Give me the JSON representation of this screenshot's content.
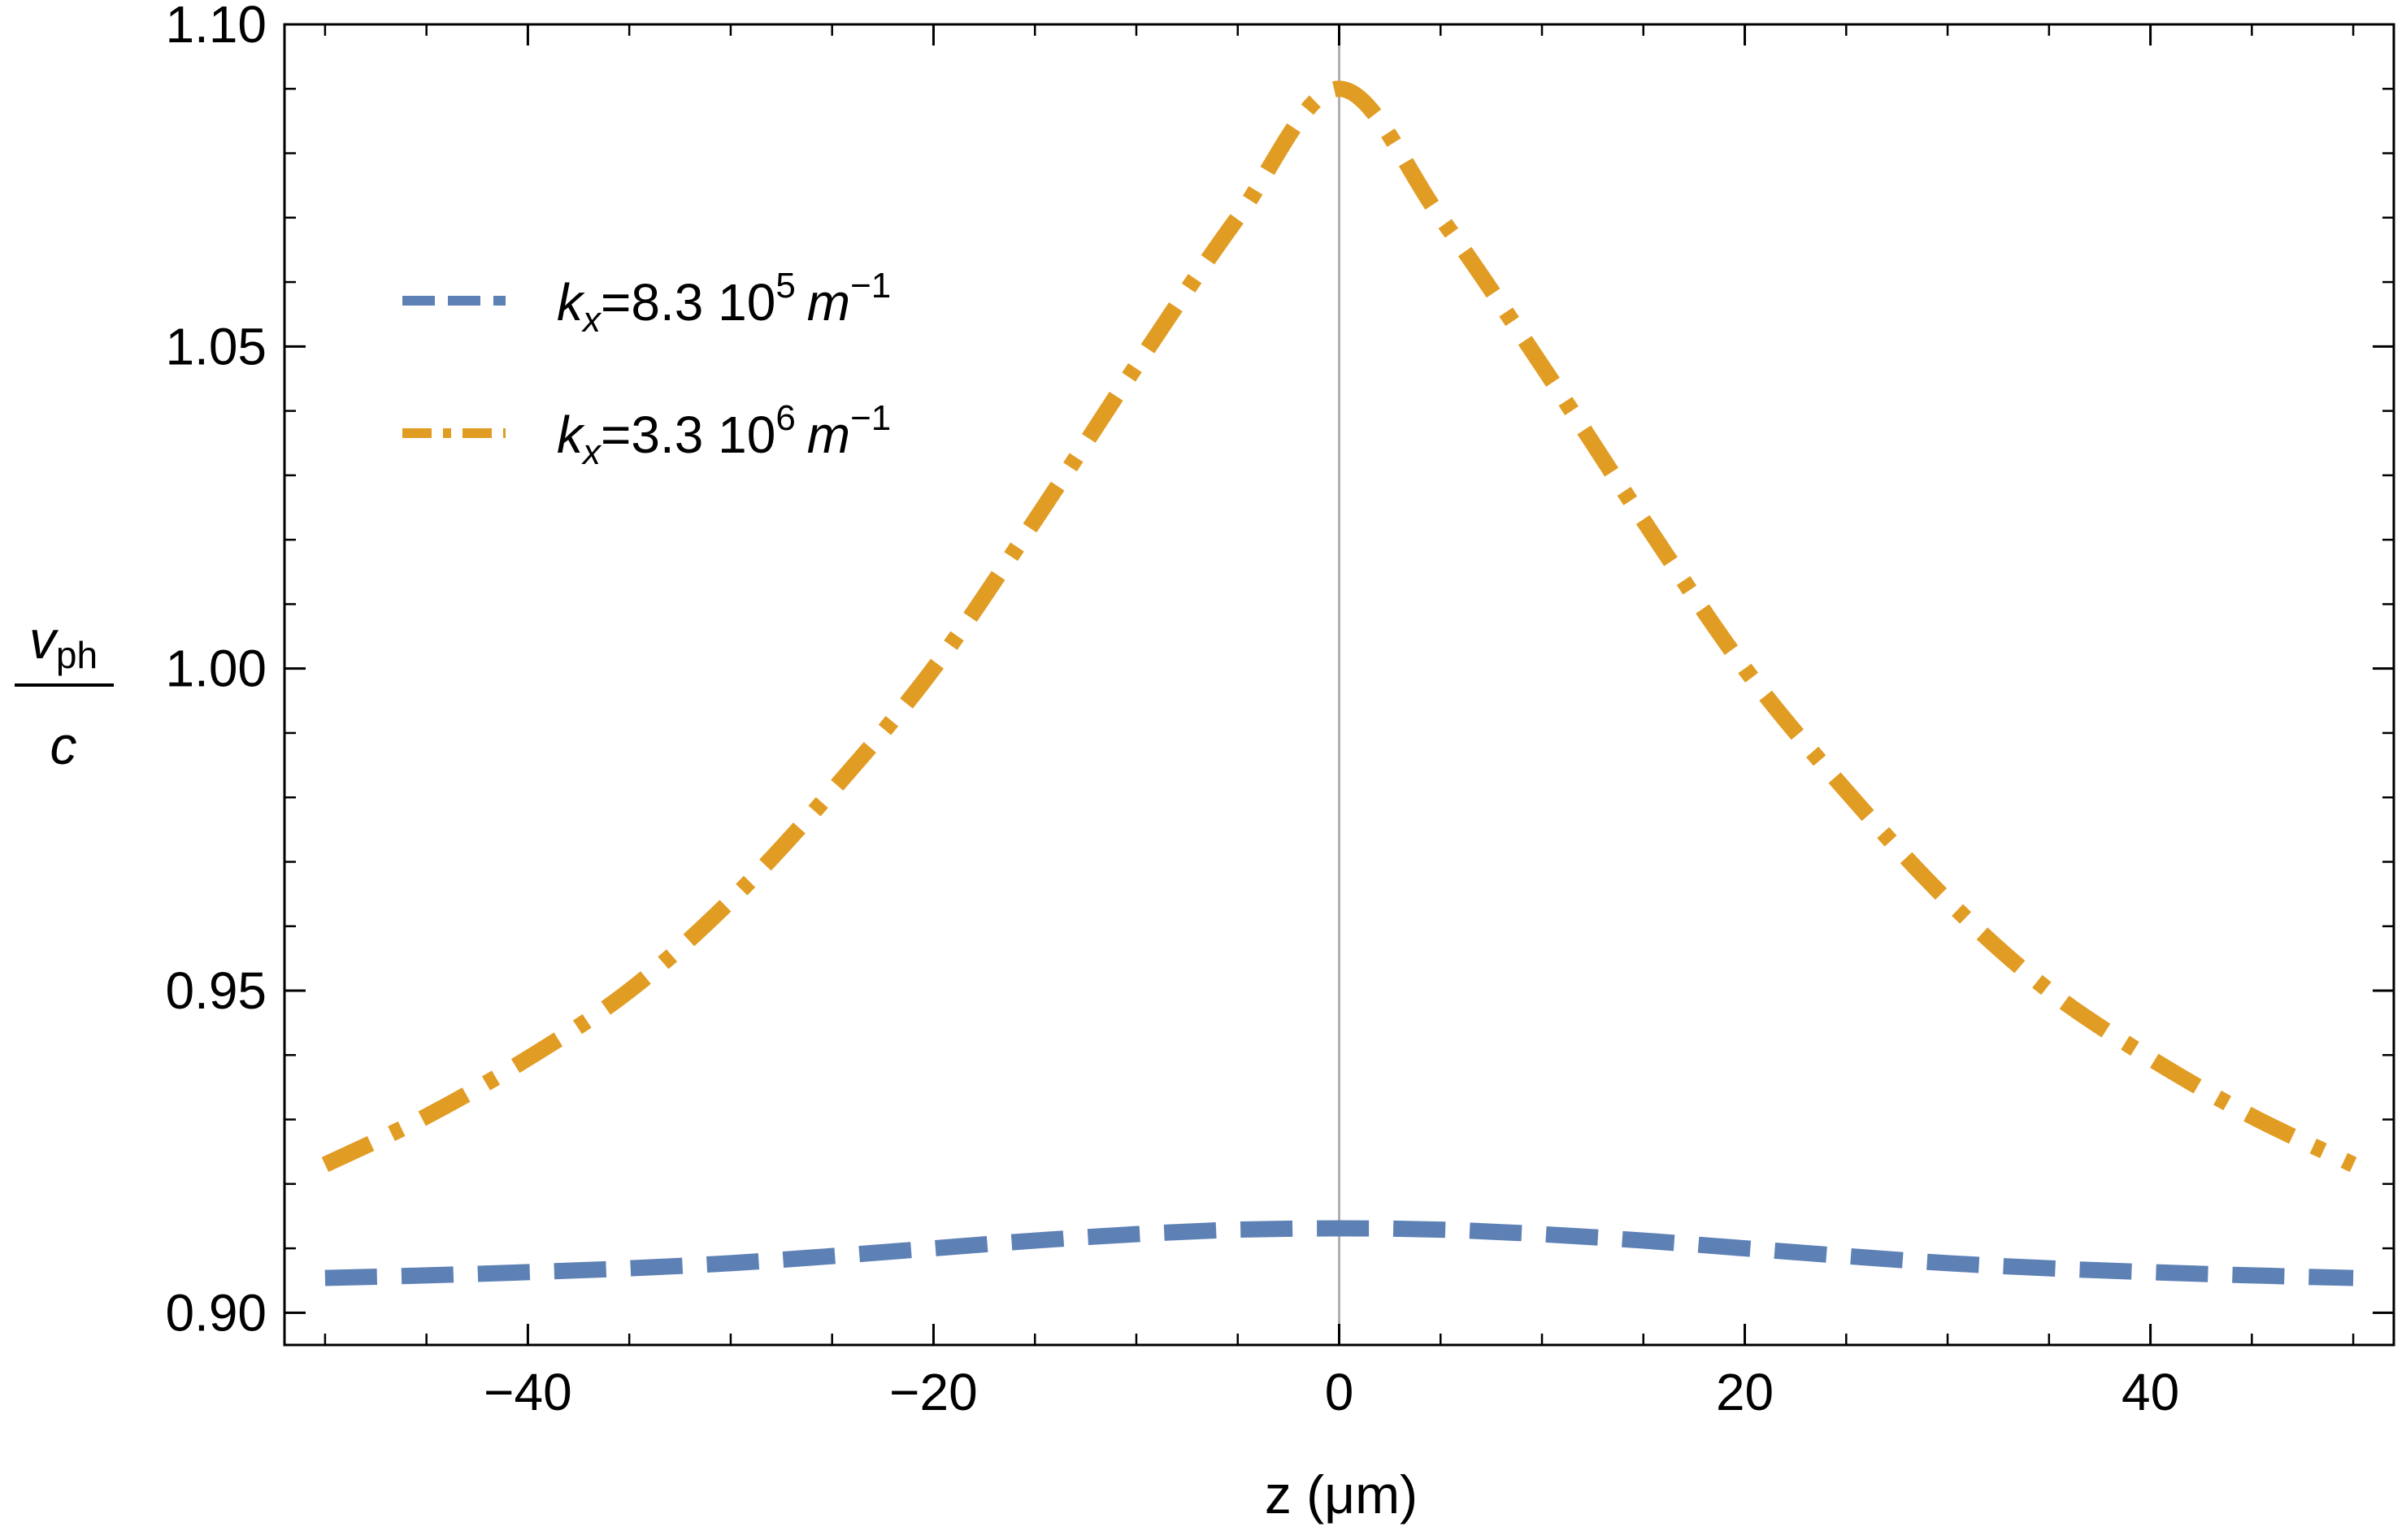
{
  "chart_data": {
    "type": "line",
    "title": "",
    "xlabel": "z (μm)",
    "ylabel": {
      "numerator_var": "v",
      "numerator_sub": "ph",
      "denominator": "c"
    },
    "xlim": [
      -52,
      52
    ],
    "ylim": [
      0.895,
      1.1
    ],
    "x_ticks": [
      -40,
      -20,
      0,
      20,
      40
    ],
    "x_tick_labels": [
      "−40",
      "−20",
      "0",
      "20",
      "40"
    ],
    "y_ticks": [
      0.9,
      0.95,
      1.0,
      1.05,
      1.1
    ],
    "y_tick_labels": [
      "0.90",
      "0.95",
      "1.00",
      "1.05",
      "1.10"
    ],
    "x_minor_step": 5,
    "y_minor_step": 0.01,
    "vertical_reference_line": 0,
    "legend_position": "top-left",
    "series": [
      {
        "name": "k_x=8.3 10^5 m^-1",
        "label": {
          "var": "k",
          "sub": "x",
          "text": "=8.3 10",
          "exp": "5",
          "unit": "m",
          "unit_exp": "−1"
        },
        "color": "#5e81b5",
        "dash": "dashed",
        "x": [
          -50,
          -45,
          -40,
          -35,
          -30,
          -25,
          -20,
          -15,
          -10,
          -5,
          0,
          5,
          10,
          15,
          20,
          25,
          30,
          35,
          40,
          45,
          50
        ],
        "y": [
          0.9054,
          0.9058,
          0.9063,
          0.9069,
          0.9077,
          0.9088,
          0.91,
          0.9112,
          0.9122,
          0.9129,
          0.9131,
          0.9129,
          0.9122,
          0.9112,
          0.91,
          0.9088,
          0.9077,
          0.9069,
          0.9063,
          0.9058,
          0.9054
        ]
      },
      {
        "name": "k_x=3.3 10^6 m^-1",
        "label": {
          "var": "k",
          "sub": "x",
          "text": "=3.3 10",
          "exp": "6",
          "unit": "m",
          "unit_exp": "−1"
        },
        "color": "#e19c24",
        "dash": "dash-dot",
        "x": [
          -50,
          -45,
          -40,
          -35,
          -30,
          -25,
          -20,
          -15,
          -10,
          -5,
          0,
          5,
          10,
          15,
          20,
          25,
          30,
          35,
          40,
          45,
          50
        ],
        "y": [
          0.923,
          0.9305,
          0.9395,
          0.95,
          0.964,
          0.981,
          1.0,
          1.023,
          1.047,
          1.07,
          1.09,
          1.07,
          1.047,
          1.023,
          1.0,
          0.981,
          0.964,
          0.95,
          0.9395,
          0.9305,
          0.923
        ]
      }
    ]
  }
}
